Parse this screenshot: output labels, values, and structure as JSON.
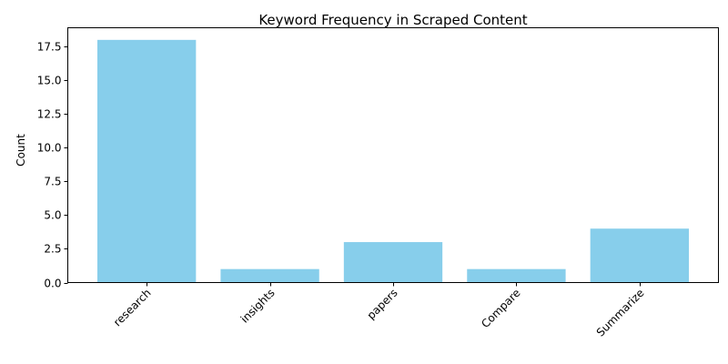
{
  "chart_data": {
    "type": "bar",
    "title": "Keyword Frequency in Scraped Content",
    "xlabel": "",
    "ylabel": "Count",
    "categories": [
      "research",
      "insights",
      "papers",
      "Compare",
      "Summarize"
    ],
    "values": [
      18,
      1,
      3,
      1,
      4
    ],
    "ylim": [
      0,
      18.9
    ],
    "yticks": [
      0.0,
      2.5,
      5.0,
      7.5,
      10.0,
      12.5,
      15.0,
      17.5
    ],
    "ytick_labels": [
      "0.0",
      "2.5",
      "5.0",
      "7.5",
      "10.0",
      "12.5",
      "15.0",
      "17.5"
    ],
    "bar_color": "#87ceeb",
    "xtick_rotation_deg": 45,
    "grid": false,
    "legend": "none"
  }
}
